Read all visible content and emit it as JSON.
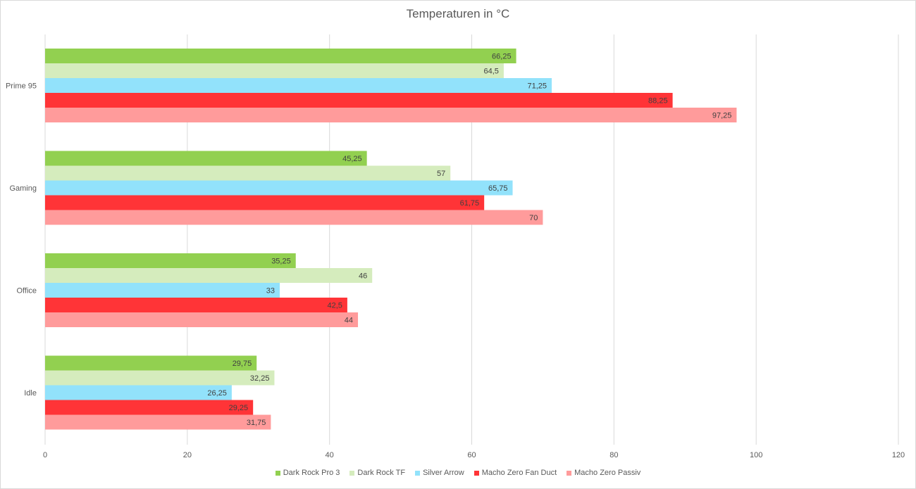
{
  "chart_data": {
    "type": "bar",
    "orientation": "horizontal",
    "title": "Temperaturen in °C",
    "categories": [
      "Prime 95",
      "Gaming",
      "Office",
      "Idle"
    ],
    "series": [
      {
        "name": "Dark Rock Pro 3",
        "color": "#92d050",
        "values": [
          66.25,
          45.25,
          35.25,
          29.75
        ],
        "labels": [
          "66,25",
          "45,25",
          "35,25",
          "29,75"
        ]
      },
      {
        "name": "Dark Rock TF",
        "color": "#d5ecbd",
        "values": [
          64.5,
          57,
          46,
          32.25
        ],
        "labels": [
          "64,5",
          "57",
          "46",
          "32,25"
        ]
      },
      {
        "name": "Silver Arrow",
        "color": "#92e2fb",
        "values": [
          71.25,
          65.75,
          33,
          26.25
        ],
        "labels": [
          "71,25",
          "65,75",
          "33",
          "26,25"
        ]
      },
      {
        "name": "Macho Zero Fan Duct",
        "color": "#ff3437",
        "values": [
          88.25,
          61.75,
          42.5,
          29.25
        ],
        "labels": [
          "88,25",
          "61,75",
          "42,5",
          "29,25"
        ]
      },
      {
        "name": "Macho Zero Passiv",
        "color": "#ff9b9b",
        "values": [
          97.25,
          70,
          44,
          31.75
        ],
        "labels": [
          "97,25",
          "70",
          "44",
          "31,75"
        ]
      }
    ],
    "xlim": [
      0,
      120
    ],
    "xticks": [
      0,
      20,
      40,
      60,
      80,
      100,
      120
    ],
    "grid": true,
    "legend_position": "bottom"
  }
}
